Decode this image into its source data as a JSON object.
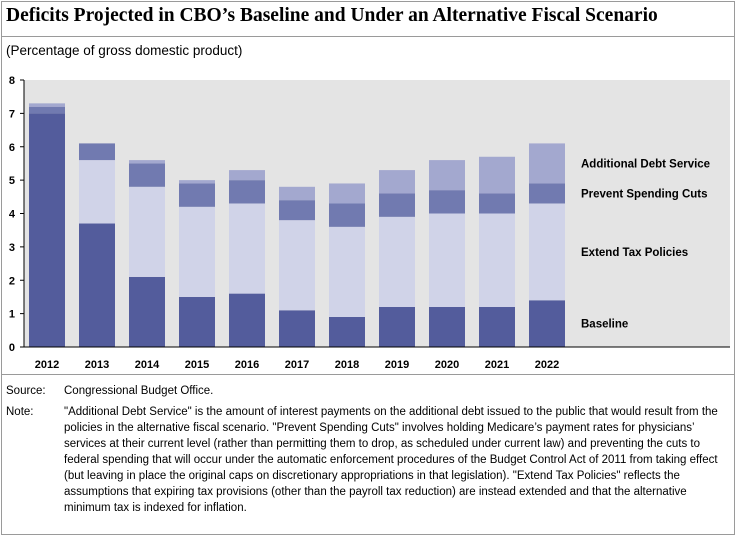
{
  "figure": {
    "title": "Deficits Projected in CBO’s Baseline and Under an Alternative Fiscal Scenario",
    "subtitle": "(Percentage of gross domestic product)"
  },
  "chart_data": {
    "type": "bar",
    "stacked": true,
    "categories": [
      "2012",
      "2013",
      "2014",
      "2015",
      "2016",
      "2017",
      "2018",
      "2019",
      "2020",
      "2021",
      "2022"
    ],
    "series": [
      {
        "name": "Baseline",
        "color": "#535c9c",
        "values": [
          7.0,
          3.7,
          2.1,
          1.5,
          1.6,
          1.1,
          0.9,
          1.2,
          1.2,
          1.2,
          1.4
        ]
      },
      {
        "name": "Extend Tax Policies",
        "color": "#d0d3e8",
        "values": [
          0.0,
          1.9,
          2.7,
          2.7,
          2.7,
          2.7,
          2.7,
          2.7,
          2.8,
          2.8,
          2.9
        ]
      },
      {
        "name": "Prevent Spending Cuts",
        "color": "#717ab0",
        "values": [
          0.2,
          0.5,
          0.7,
          0.7,
          0.7,
          0.6,
          0.7,
          0.7,
          0.7,
          0.6,
          0.6
        ]
      },
      {
        "name": "Additional Debt Service",
        "color": "#a3a8cf",
        "values": [
          0.1,
          0.0,
          0.1,
          0.1,
          0.3,
          0.4,
          0.6,
          0.7,
          0.9,
          1.1,
          1.2
        ]
      }
    ],
    "ylim": [
      0,
      8
    ],
    "yticks": [
      "0",
      "1",
      "2",
      "3",
      "4",
      "5",
      "6",
      "7",
      "8"
    ],
    "grid": false,
    "plot_background": "#e4e4e4",
    "legend_placement": "right, labels beside last bar"
  },
  "footer": {
    "source_label": "Source:",
    "source_text": "Congressional Budget Office.",
    "note_label": "Note:",
    "note_text": "\"Additional Debt Service\" is the amount of interest payments on the additional debt issued to the public that would result from the policies in the alternative fiscal scenario. \"Prevent Spending Cuts\" involves holding Medicare’s payment rates for physicians’ services at their current level (rather than permitting them to drop, as scheduled under current law) and preventing the cuts to federal spending that will occur under the automatic enforcement procedures of the Budget Control Act of 2011 from taking effect (but leaving in place the original caps on discretionary appropriations in that legislation). \"Extend Tax Policies\" reflects the assumptions that expiring tax provisions (other than the payroll tax reduction) are instead extended and that the alternative minimum tax is indexed for inflation."
  }
}
